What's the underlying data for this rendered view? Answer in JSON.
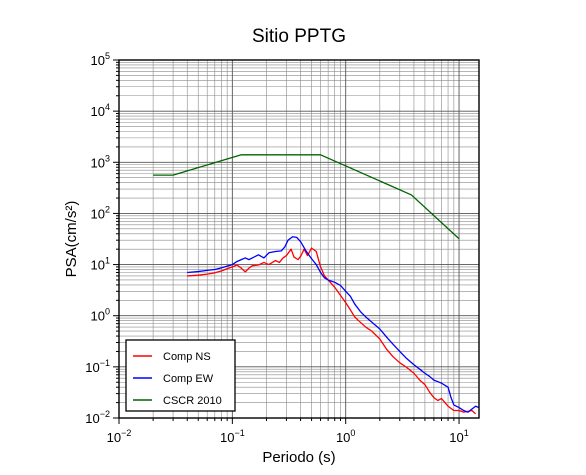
{
  "chart_data": {
    "type": "line",
    "title": "Sitio PPTG",
    "xlabel": "Periodo (s)",
    "ylabel": "PSA(cm/s²)",
    "xscale": "log",
    "yscale": "log",
    "xlim": [
      0.01,
      15
    ],
    "ylim": [
      0.01,
      100000
    ],
    "grid": true,
    "legend_position": "bottom-left",
    "x_ticks": [
      {
        "value": 0.01,
        "base": "10",
        "exp": "−2"
      },
      {
        "value": 0.1,
        "base": "10",
        "exp": "−1"
      },
      {
        "value": 1,
        "base": "10",
        "exp": "0"
      },
      {
        "value": 10,
        "base": "10",
        "exp": "1"
      }
    ],
    "y_ticks": [
      {
        "value": 0.01,
        "base": "10",
        "exp": "−2"
      },
      {
        "value": 0.1,
        "base": "10",
        "exp": "−1"
      },
      {
        "value": 1,
        "base": "10",
        "exp": "0"
      },
      {
        "value": 10,
        "base": "10",
        "exp": "1"
      },
      {
        "value": 100,
        "base": "10",
        "exp": "2"
      },
      {
        "value": 1000,
        "base": "10",
        "exp": "3"
      },
      {
        "value": 10000,
        "base": "10",
        "exp": "4"
      },
      {
        "value": 100000,
        "base": "10",
        "exp": "5"
      }
    ],
    "series": [
      {
        "name": "Comp NS",
        "color": "#ff0000",
        "points": [
          [
            0.04,
            6.0
          ],
          [
            0.05,
            6.2
          ],
          [
            0.06,
            6.5
          ],
          [
            0.07,
            6.9
          ],
          [
            0.08,
            7.5
          ],
          [
            0.09,
            8.3
          ],
          [
            0.1,
            9.0
          ],
          [
            0.11,
            9.8
          ],
          [
            0.12,
            8.5
          ],
          [
            0.13,
            7.2
          ],
          [
            0.14,
            8.5
          ],
          [
            0.15,
            9.5
          ],
          [
            0.17,
            9.8
          ],
          [
            0.19,
            11.0
          ],
          [
            0.21,
            10.0
          ],
          [
            0.24,
            12.0
          ],
          [
            0.26,
            11.0
          ],
          [
            0.28,
            13.5
          ],
          [
            0.3,
            15.0
          ],
          [
            0.33,
            20.0
          ],
          [
            0.35,
            14.0
          ],
          [
            0.38,
            12.5
          ],
          [
            0.4,
            14.5
          ],
          [
            0.43,
            20.0
          ],
          [
            0.46,
            15.0
          ],
          [
            0.5,
            21.0
          ],
          [
            0.55,
            18.0
          ],
          [
            0.6,
            9.0
          ],
          [
            0.65,
            6.0
          ],
          [
            0.7,
            5.0
          ],
          [
            0.8,
            3.6
          ],
          [
            0.9,
            2.5
          ],
          [
            1.0,
            1.8
          ],
          [
            1.1,
            1.3
          ],
          [
            1.2,
            0.95
          ],
          [
            1.3,
            0.8
          ],
          [
            1.5,
            0.6
          ],
          [
            1.7,
            0.5
          ],
          [
            2.0,
            0.35
          ],
          [
            2.3,
            0.22
          ],
          [
            2.6,
            0.16
          ],
          [
            3.0,
            0.12
          ],
          [
            3.4,
            0.1
          ],
          [
            4.0,
            0.075
          ],
          [
            4.5,
            0.055
          ],
          [
            5.0,
            0.045
          ],
          [
            5.5,
            0.032
          ],
          [
            6.0,
            0.025
          ],
          [
            6.5,
            0.022
          ],
          [
            7.0,
            0.024
          ],
          [
            7.5,
            0.02
          ],
          [
            8.0,
            0.017
          ],
          [
            9.0,
            0.014
          ],
          [
            10.0,
            0.014
          ],
          [
            11.0,
            0.013
          ],
          [
            12.0,
            0.0135
          ],
          [
            13.0,
            0.014
          ],
          [
            14.0,
            0.012
          ]
        ]
      },
      {
        "name": "Comp EW",
        "color": "#0000ff",
        "points": [
          [
            0.04,
            7.0
          ],
          [
            0.05,
            7.3
          ],
          [
            0.06,
            7.7
          ],
          [
            0.07,
            8.0
          ],
          [
            0.08,
            8.6
          ],
          [
            0.09,
            9.3
          ],
          [
            0.1,
            10.0
          ],
          [
            0.11,
            11.5
          ],
          [
            0.12,
            12.5
          ],
          [
            0.13,
            13.5
          ],
          [
            0.14,
            12.5
          ],
          [
            0.15,
            13.5
          ],
          [
            0.17,
            15.5
          ],
          [
            0.19,
            13.5
          ],
          [
            0.21,
            17.0
          ],
          [
            0.24,
            18.0
          ],
          [
            0.27,
            18.5
          ],
          [
            0.29,
            22.0
          ],
          [
            0.31,
            30.0
          ],
          [
            0.34,
            35.0
          ],
          [
            0.37,
            34.0
          ],
          [
            0.4,
            28.0
          ],
          [
            0.45,
            18.0
          ],
          [
            0.5,
            13.0
          ],
          [
            0.55,
            10.0
          ],
          [
            0.6,
            7.0
          ],
          [
            0.65,
            5.5
          ],
          [
            0.7,
            5.0
          ],
          [
            0.8,
            4.5
          ],
          [
            0.9,
            3.9
          ],
          [
            1.0,
            3.0
          ],
          [
            1.1,
            2.4
          ],
          [
            1.2,
            1.7
          ],
          [
            1.35,
            1.2
          ],
          [
            1.5,
            0.95
          ],
          [
            1.7,
            0.75
          ],
          [
            2.0,
            0.55
          ],
          [
            2.3,
            0.38
          ],
          [
            2.6,
            0.28
          ],
          [
            3.0,
            0.2
          ],
          [
            3.4,
            0.15
          ],
          [
            4.0,
            0.11
          ],
          [
            4.5,
            0.09
          ],
          [
            5.0,
            0.075
          ],
          [
            5.5,
            0.065
          ],
          [
            6.0,
            0.055
          ],
          [
            7.0,
            0.048
          ],
          [
            8.0,
            0.04
          ],
          [
            8.5,
            0.025
          ],
          [
            9.0,
            0.018
          ],
          [
            10.0,
            0.016
          ],
          [
            11.0,
            0.014
          ],
          [
            12.0,
            0.013
          ],
          [
            13.0,
            0.015
          ],
          [
            14.0,
            0.017
          ],
          [
            15.0,
            0.016
          ]
        ]
      },
      {
        "name": "CSCR 2010",
        "color": "#006400",
        "points": [
          [
            0.02,
            560
          ],
          [
            0.03,
            560
          ],
          [
            0.12,
            1400
          ],
          [
            0.6,
            1400
          ],
          [
            3.8,
            230
          ],
          [
            10.0,
            32
          ]
        ]
      }
    ]
  }
}
